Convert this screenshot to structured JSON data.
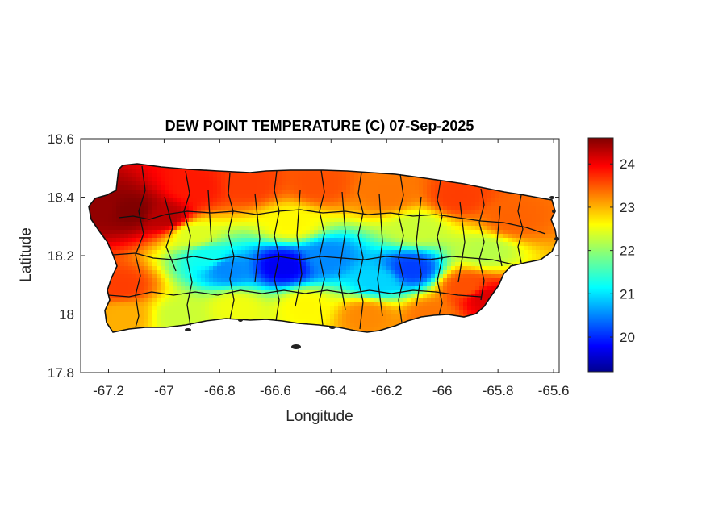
{
  "chart_data": {
    "type": "heatmap",
    "title": "DEW POINT TEMPERATURE (C) 07-Sep-2025",
    "xlabel": "Longitude",
    "ylabel": "Latitude",
    "xlim": [
      -67.3,
      -65.58
    ],
    "ylim": [
      17.8,
      18.6
    ],
    "x_ticks": [
      "-67.2",
      "-67",
      "-66.8",
      "-66.6",
      "-66.4",
      "-66.2",
      "-66",
      "-65.8",
      "-65.6"
    ],
    "x_tick_values": [
      -67.2,
      -67.0,
      -66.8,
      -66.6,
      -66.4,
      -66.2,
      -66.0,
      -65.8,
      -65.6
    ],
    "y_ticks": [
      "17.8",
      "18",
      "18.2",
      "18.4",
      "18.6"
    ],
    "y_tick_values": [
      17.8,
      18.0,
      18.2,
      18.4,
      18.6
    ],
    "colormap": "jet",
    "colorbar": {
      "clim": [
        19.2,
        24.6
      ],
      "ticks": [
        "20",
        "21",
        "22",
        "23",
        "24"
      ],
      "tick_values": [
        20,
        21,
        22,
        23,
        24
      ]
    },
    "field_anchors": [
      {
        "lon": -67.12,
        "lat": 18.36,
        "value": 24.6
      },
      {
        "lon": -67.24,
        "lat": 18.37,
        "value": 24.5
      },
      {
        "lon": -67.0,
        "lat": 18.34,
        "value": 24.3
      },
      {
        "lon": -66.9,
        "lat": 18.44,
        "value": 23.8
      },
      {
        "lon": -66.7,
        "lat": 18.45,
        "value": 23.6
      },
      {
        "lon": -66.45,
        "lat": 18.45,
        "value": 23.5
      },
      {
        "lon": -66.2,
        "lat": 18.42,
        "value": 23.3
      },
      {
        "lon": -65.95,
        "lat": 18.41,
        "value": 23.6
      },
      {
        "lon": -65.75,
        "lat": 18.33,
        "value": 23.4
      },
      {
        "lon": -65.85,
        "lat": 18.22,
        "value": 22.2
      },
      {
        "lon": -66.55,
        "lat": 18.32,
        "value": 22.6
      },
      {
        "lon": -66.1,
        "lat": 18.3,
        "value": 22.3
      },
      {
        "lon": -66.85,
        "lat": 18.2,
        "value": 21.3
      },
      {
        "lon": -66.78,
        "lat": 18.16,
        "value": 20.6
      },
      {
        "lon": -66.58,
        "lat": 18.17,
        "value": 19.8
      },
      {
        "lon": -66.42,
        "lat": 18.2,
        "value": 20.6
      },
      {
        "lon": -66.12,
        "lat": 18.16,
        "value": 20.2
      },
      {
        "lon": -66.24,
        "lat": 18.12,
        "value": 21.0
      },
      {
        "lon": -67.16,
        "lat": 18.1,
        "value": 23.6
      },
      {
        "lon": -67.15,
        "lat": 18.0,
        "value": 23.0
      },
      {
        "lon": -66.95,
        "lat": 18.0,
        "value": 22.3
      },
      {
        "lon": -66.75,
        "lat": 18.03,
        "value": 22.5
      },
      {
        "lon": -66.5,
        "lat": 18.03,
        "value": 22.6
      },
      {
        "lon": -66.28,
        "lat": 18.0,
        "value": 23.2
      },
      {
        "lon": -66.05,
        "lat": 18.0,
        "value": 23.3
      },
      {
        "lon": -65.85,
        "lat": 18.06,
        "value": 24.1
      },
      {
        "lon": -65.92,
        "lat": 18.1,
        "value": 23.5
      },
      {
        "lon": -66.9,
        "lat": 18.28,
        "value": 22.4
      }
    ]
  }
}
